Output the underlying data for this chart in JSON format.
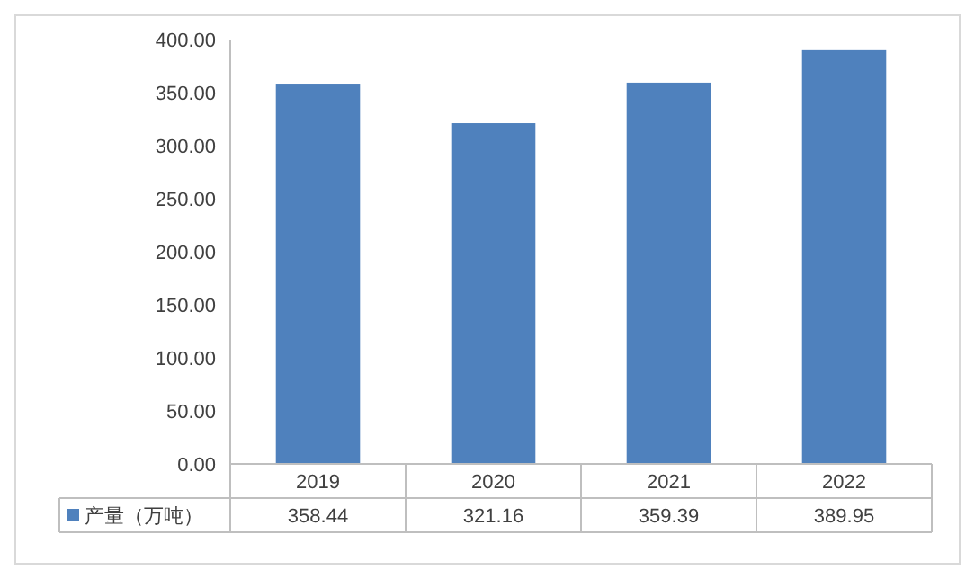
{
  "chart_data": {
    "type": "bar",
    "categories": [
      "2019",
      "2020",
      "2021",
      "2022"
    ],
    "series": [
      {
        "name": "产量（万吨）",
        "color": "#4f81bd",
        "values": [
          358.44,
          321.16,
          359.39,
          389.95
        ]
      }
    ],
    "ylim": [
      0,
      400
    ],
    "yticks": [
      {
        "value": 0,
        "label": "0.00"
      },
      {
        "value": 50,
        "label": "50.00"
      },
      {
        "value": 100,
        "label": "100.00"
      },
      {
        "value": 150,
        "label": "150.00"
      },
      {
        "value": 200,
        "label": "200.00"
      },
      {
        "value": 250,
        "label": "250.00"
      },
      {
        "value": 300,
        "label": "300.00"
      },
      {
        "value": 350,
        "label": "350.00"
      },
      {
        "value": 400,
        "label": "400.00"
      }
    ],
    "grid": false,
    "legend": "bottom",
    "data_labels": true
  }
}
